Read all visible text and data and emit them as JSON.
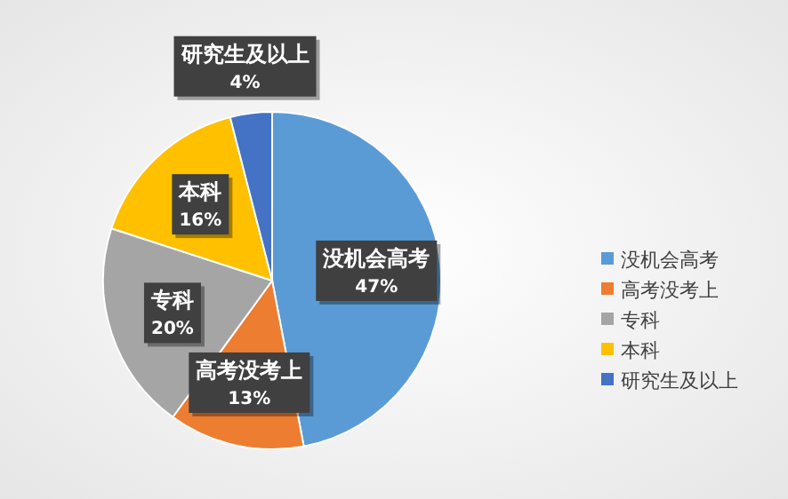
{
  "chart_data": {
    "type": "pie",
    "categories": [
      "没机会高考",
      "高考没考上",
      "专科",
      "本科",
      "研究生及以上"
    ],
    "values": [
      47,
      13,
      20,
      16,
      4
    ],
    "colors": [
      "#5b9bd5",
      "#ed7d31",
      "#a5a5a5",
      "#ffc000",
      "#4472c4"
    ],
    "value_labels": [
      "47%",
      "13%",
      "20%",
      "16%",
      "4%"
    ],
    "legend": "right"
  }
}
